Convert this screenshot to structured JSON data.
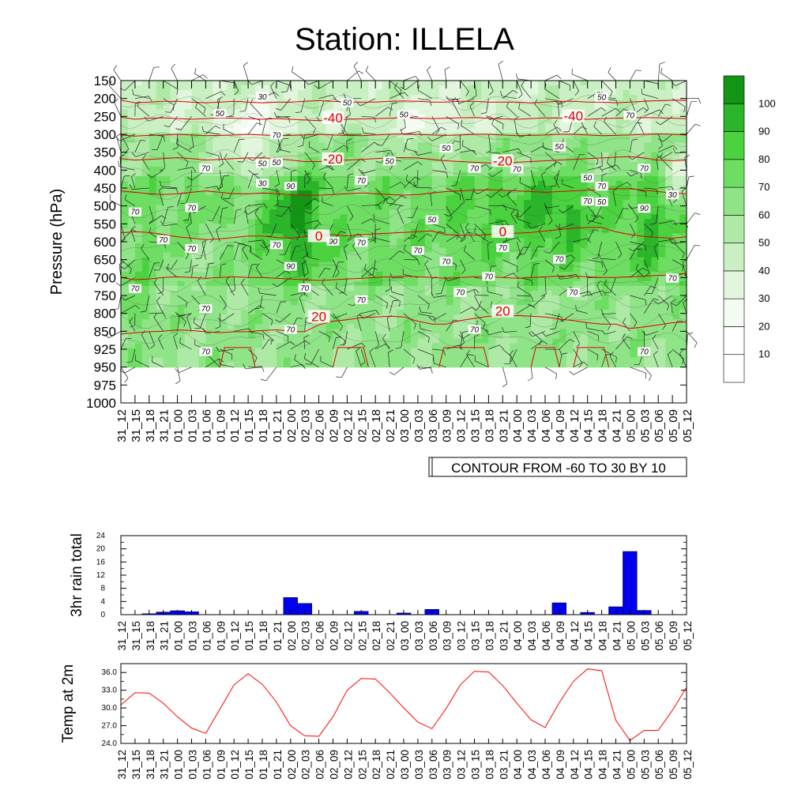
{
  "title": "Station: ILLELA",
  "time_labels": [
    "31_12",
    "31_15",
    "31_18",
    "31_21",
    "01_00",
    "01_03",
    "01_06",
    "01_09",
    "01_12",
    "01_15",
    "01_18",
    "01_21",
    "02_00",
    "02_03",
    "02_06",
    "02_09",
    "02_12",
    "02_15",
    "02_18",
    "02_21",
    "03_00",
    "03_03",
    "03_06",
    "03_09",
    "03_12",
    "03_15",
    "03_18",
    "03_21",
    "04_00",
    "04_03",
    "04_06",
    "04_09",
    "04_12",
    "04_15",
    "04_18",
    "04_21",
    "05_00",
    "05_03",
    "05_06",
    "05_09",
    "05_12"
  ],
  "chart_data": [
    {
      "type": "heatmap",
      "ylabel": "Pressure (hPa)",
      "pressure_levels": [
        150,
        200,
        250,
        300,
        350,
        400,
        450,
        500,
        550,
        600,
        650,
        700,
        750,
        800,
        850,
        925,
        950,
        975,
        1000
      ],
      "footer_label": "CONTOUR FROM -60 TO 30 BY 10",
      "colorbar_levels": [
        10,
        20,
        30,
        40,
        50,
        60,
        70,
        80,
        90,
        100
      ],
      "colorbar_colors": [
        "#ffffff",
        "#ffffff",
        "#f4fbf2",
        "#e1f6dc",
        "#c9f0c2",
        "#aeeaa6",
        "#8fe487",
        "#6ede63",
        "#4bd23f",
        "#2ab52a",
        "#149414"
      ],
      "temperature_contour_labels": [
        {
          "text": "-40",
          "time": "02_09",
          "p": 260
        },
        {
          "text": "-40",
          "time": "04_12",
          "p": 255
        },
        {
          "text": "-20",
          "time": "02_09",
          "p": 375
        },
        {
          "text": "-20",
          "time": "03_21",
          "p": 380
        },
        {
          "text": "0",
          "time": "02_06",
          "p": 590
        },
        {
          "text": "0",
          "time": "03_21",
          "p": 578
        },
        {
          "text": "20",
          "time": "02_06",
          "p": 815
        },
        {
          "text": "20",
          "time": "03_21",
          "p": 800
        }
      ],
      "temperature_contours": [
        {
          "level": -50,
          "p": [
            205,
            212,
            210,
            208,
            208,
            210,
            212,
            210,
            208,
            210,
            212,
            210,
            210,
            208,
            206,
            208,
            210,
            210,
            210,
            208,
            207,
            208,
            210,
            210,
            208,
            208,
            210,
            210,
            210,
            212,
            210,
            208,
            208,
            210,
            210,
            212,
            210,
            208,
            206,
            205,
            206
          ]
        },
        {
          "level": -40,
          "p": [
            252,
            258,
            255,
            254,
            256,
            258,
            256,
            254,
            255,
            256,
            258,
            256,
            258,
            260,
            262,
            260,
            258,
            257,
            256,
            255,
            254,
            255,
            256,
            255,
            254,
            253,
            255,
            257,
            258,
            256,
            254,
            255,
            257,
            258,
            256,
            255,
            254,
            253,
            254,
            255,
            256
          ]
        },
        {
          "level": -30,
          "p": [
            302,
            305,
            303,
            302,
            300,
            302,
            304,
            303,
            302,
            300,
            302,
            304,
            303,
            302,
            300,
            302,
            303,
            304,
            302,
            300,
            299,
            300,
            302,
            303,
            302,
            300,
            300,
            302,
            304,
            303,
            302,
            300,
            300,
            302,
            304,
            303,
            302,
            300,
            299,
            300,
            302
          ]
        },
        {
          "level": -20,
          "p": [
            368,
            372,
            370,
            368,
            365,
            368,
            372,
            370,
            368,
            366,
            366,
            368,
            372,
            376,
            376,
            374,
            372,
            370,
            368,
            366,
            365,
            366,
            370,
            374,
            376,
            378,
            380,
            380,
            378,
            376,
            374,
            372,
            370,
            368,
            366,
            364,
            362,
            366,
            372,
            374,
            372
          ]
        },
        {
          "level": -10,
          "p": [
            458,
            462,
            466,
            468,
            466,
            462,
            458,
            462,
            466,
            466,
            464,
            466,
            468,
            470,
            470,
            468,
            466,
            464,
            466,
            468,
            470,
            468,
            464,
            460,
            458,
            456,
            455,
            456,
            458,
            460,
            462,
            460,
            458,
            456,
            454,
            452,
            452,
            456,
            460,
            464,
            466
          ]
        },
        {
          "level": 0,
          "p": [
            575,
            572,
            574,
            580,
            586,
            590,
            594,
            592,
            588,
            584,
            584,
            588,
            590,
            586,
            582,
            580,
            584,
            580,
            578,
            576,
            574,
            572,
            570,
            580,
            582,
            582,
            580,
            578,
            576,
            574,
            570,
            566,
            562,
            560,
            560,
            572,
            580,
            585,
            588,
            590,
            586
          ]
        },
        {
          "level": 10,
          "p": [
            700,
            706,
            704,
            700,
            698,
            700,
            702,
            700,
            698,
            700,
            700,
            702,
            704,
            706,
            708,
            706,
            704,
            702,
            700,
            698,
            696,
            698,
            700,
            702,
            700,
            698,
            698,
            700,
            702,
            700,
            698,
            696,
            696,
            698,
            700,
            700,
            698,
            696,
            694,
            692,
            688
          ]
        },
        {
          "level": 20,
          "p": [
            862,
            856,
            852,
            850,
            846,
            848,
            852,
            856,
            852,
            852,
            848,
            846,
            850,
            852,
            832,
            822,
            818,
            812,
            810,
            808,
            810,
            822,
            830,
            830,
            820,
            814,
            808,
            808,
            806,
            808,
            810,
            816,
            820,
            826,
            830,
            830,
            842,
            838,
            832,
            826,
            824
          ]
        }
      ],
      "rh_labels": [
        {
          "text": "30",
          "time": "01_18",
          "p": 198
        },
        {
          "text": "50",
          "time": "01_09",
          "p": 245
        },
        {
          "text": "50",
          "time": "02_12",
          "p": 215
        },
        {
          "text": "50",
          "time": "03_00",
          "p": 248
        },
        {
          "text": "50",
          "time": "04_18",
          "p": 200
        },
        {
          "text": "70",
          "time": "05_00",
          "p": 250
        },
        {
          "text": "70",
          "time": "01_21",
          "p": 305
        },
        {
          "text": "50",
          "time": "03_09",
          "p": 342
        },
        {
          "text": "50",
          "time": "04_09",
          "p": 338
        },
        {
          "text": "50",
          "time": "01_18",
          "p": 385
        },
        {
          "text": "70",
          "time": "01_06",
          "p": 398
        },
        {
          "text": "50",
          "time": "01_21",
          "p": 382
        },
        {
          "text": "50",
          "time": "02_21",
          "p": 378
        },
        {
          "text": "70",
          "time": "03_15",
          "p": 398
        },
        {
          "text": "70",
          "time": "04_00",
          "p": 400
        },
        {
          "text": "70",
          "time": "05_03",
          "p": 398
        },
        {
          "text": "30",
          "time": "01_18",
          "p": 440
        },
        {
          "text": "90",
          "time": "02_00",
          "p": 448
        },
        {
          "text": "70",
          "time": "02_15",
          "p": 432
        },
        {
          "text": "50",
          "time": "04_15",
          "p": 425
        },
        {
          "text": "70",
          "time": "04_18",
          "p": 448
        },
        {
          "text": "70",
          "time": "04_15",
          "p": 490
        },
        {
          "text": "50",
          "time": "04_18",
          "p": 492
        },
        {
          "text": "90",
          "time": "05_03",
          "p": 510
        },
        {
          "text": "70",
          "time": "01_03",
          "p": 508
        },
        {
          "text": "30",
          "time": "05_09",
          "p": 472
        },
        {
          "text": "50",
          "time": "03_06",
          "p": 542
        },
        {
          "text": "70",
          "time": "31_15",
          "p": 520
        },
        {
          "text": "70",
          "time": "31_21",
          "p": 598
        },
        {
          "text": "90",
          "time": "02_09",
          "p": 602
        },
        {
          "text": "70",
          "time": "02_15",
          "p": 605
        },
        {
          "text": "70",
          "time": "01_03",
          "p": 622
        },
        {
          "text": "70",
          "time": "01_21",
          "p": 612
        },
        {
          "text": "70",
          "time": "03_03",
          "p": 628
        },
        {
          "text": "70",
          "time": "03_09",
          "p": 658
        },
        {
          "text": "70",
          "time": "03_21",
          "p": 620
        },
        {
          "text": "70",
          "time": "04_09",
          "p": 652
        },
        {
          "text": "90",
          "time": "02_00",
          "p": 672
        },
        {
          "text": "70",
          "time": "03_18",
          "p": 700
        },
        {
          "text": "70",
          "time": "05_09",
          "p": 705
        },
        {
          "text": "70",
          "time": "31_15",
          "p": 734
        },
        {
          "text": "70",
          "time": "02_03",
          "p": 732
        },
        {
          "text": "70",
          "time": "03_12",
          "p": 745
        },
        {
          "text": "70",
          "time": "04_12",
          "p": 745
        },
        {
          "text": "70",
          "time": "02_15",
          "p": 765
        },
        {
          "text": "70",
          "time": "01_06",
          "p": 790
        },
        {
          "text": "70",
          "time": "02_00",
          "p": 848
        },
        {
          "text": "70",
          "time": "03_15",
          "p": 848
        },
        {
          "text": "70",
          "time": "01_06",
          "p": 930
        },
        {
          "text": "70",
          "time": "05_03",
          "p": 930
        }
      ]
    },
    {
      "type": "bar",
      "ylabel": "3hr rain total",
      "ylim": [
        0,
        24
      ],
      "yticks": [
        0,
        4,
        8,
        12,
        16,
        20,
        24
      ],
      "color": "#0000ee",
      "values": [
        0,
        0,
        0.3,
        0.8,
        1.2,
        0.9,
        0,
        0,
        0,
        0,
        0,
        0,
        5.2,
        3.4,
        0,
        0,
        0,
        1.0,
        0,
        0,
        0.5,
        0,
        1.6,
        0,
        0,
        0,
        0,
        0,
        0,
        0,
        0,
        3.6,
        0,
        0.7,
        0,
        2.4,
        19.2,
        1.3,
        0,
        0,
        0
      ]
    },
    {
      "type": "line",
      "ylabel": "Temp at 2m",
      "ylim": [
        24,
        37.5
      ],
      "yticks": [
        24.0,
        27.0,
        30.0,
        33.0,
        36.0
      ],
      "color": "#ff0000",
      "values": [
        30.5,
        32.6,
        32.5,
        30.8,
        28.5,
        26.6,
        25.7,
        29.8,
        33.9,
        35.8,
        34.0,
        31.0,
        27.0,
        25.3,
        25.2,
        28.5,
        33.0,
        35.0,
        34.9,
        32.6,
        30.0,
        27.6,
        26.5,
        29.9,
        33.9,
        36.2,
        36.1,
        33.8,
        30.8,
        28.0,
        26.7,
        30.9,
        34.5,
        36.6,
        36.3,
        27.9,
        24.5,
        26.2,
        26.2,
        29.6,
        33.5
      ]
    }
  ]
}
